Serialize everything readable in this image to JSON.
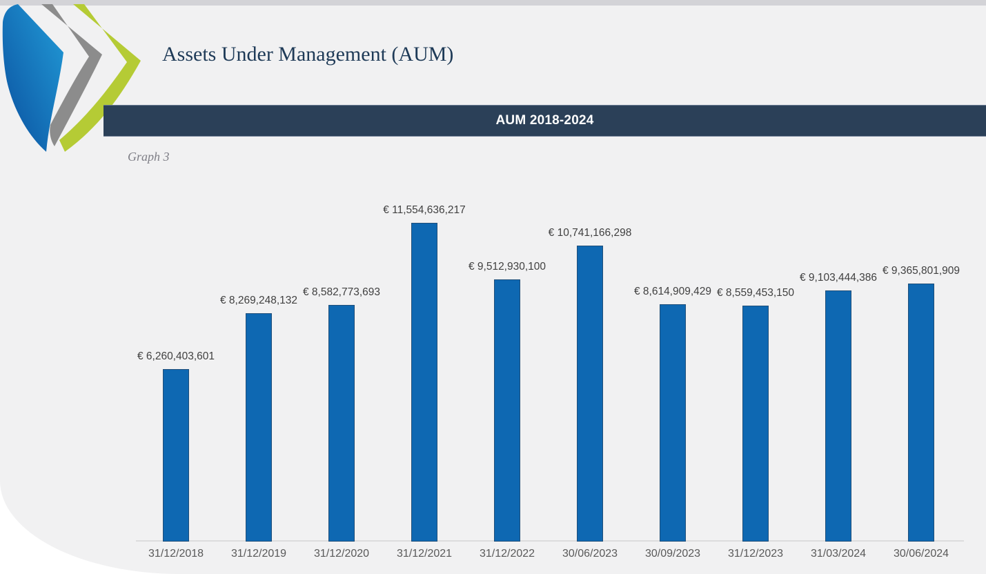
{
  "page": {
    "title": "Assets Under Management (AUM)",
    "graph_label": "Graph 3"
  },
  "banner": {
    "title": "AUM 2018-2024"
  },
  "logo": {
    "icon": "triple-chevron-swoosh-logo",
    "colors": {
      "blue": "#0d64ad",
      "blue_light": "#229cd8",
      "gray": "#8c8c8c",
      "green": "#b5cb35"
    }
  },
  "colors": {
    "top_strip": "#d3d3d7",
    "card_bg": "#f1f1f2",
    "banner_bg": "#2b4058",
    "title": "#1e3a57",
    "bar_fill": "#0e68b2",
    "bar_border": "#1f4e79",
    "value_label": "#404040",
    "axis_label": "#595959",
    "axis_line": "#dcdcdd"
  },
  "chart_data": {
    "type": "bar",
    "title": "AUM 2018-2024",
    "currency": "EUR",
    "categories": [
      "31/12/2018",
      "31/12/2019",
      "31/12/2020",
      "31/12/2021",
      "31/12/2022",
      "30/06/2023",
      "30/09/2023",
      "31/12/2023",
      "31/03/2024",
      "30/06/2024"
    ],
    "values": [
      6260403601,
      8269248132,
      8582773693,
      11554636217,
      9512930100,
      10741166298,
      8614909429,
      8559453150,
      9103444386,
      9365801909
    ],
    "labels": [
      "€ 6,260,403,601",
      "€ 8,269,248,132",
      "€ 8,582,773,693",
      "€ 11,554,636,217",
      "€ 9,512,930,100",
      "€ 10,741,166,298",
      "€ 8,614,909,429",
      "€ 8,559,453,150",
      "€ 9,103,444,386",
      "€ 9,365,801,909"
    ],
    "ylim": [
      0,
      11554636217
    ],
    "grid": false,
    "legend": false,
    "data_labels": "above-bars",
    "xlabel": "",
    "ylabel": ""
  }
}
